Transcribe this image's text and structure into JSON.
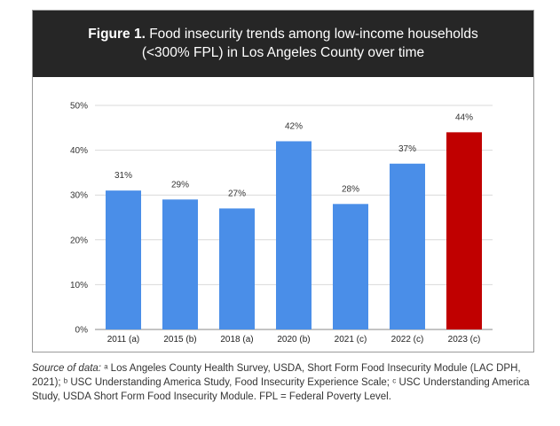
{
  "title": {
    "label": "Figure 1.",
    "line1": "Food insecurity trends among low-income households",
    "line2": "(<300% FPL) in Los Angeles County over time"
  },
  "source": {
    "label": "Source of data:",
    "text": " ᵃ Los Angeles County Health Survey, USDA, Short Form Food Insecurity Module (LAC DPH, 2021); ᵇ USC Understanding America Study, Food Insecurity Experience Scale; ᶜ USC Understanding America Study, USDA Short Form Food Insecurity Module. FPL = Federal Poverty Level."
  },
  "colors": {
    "bar": "#4a8ee8",
    "highlight": "#c00000",
    "grid": "#d9d9d9",
    "title_bg": "#262626"
  },
  "chart_data": {
    "type": "bar",
    "categories": [
      "2011 (a)",
      "2015 (b)",
      "2018 (a)",
      "2020 (b)",
      "2021 (c)",
      "2022 (c)",
      "2023 (c)"
    ],
    "values": [
      31,
      29,
      27,
      42,
      28,
      37,
      44
    ],
    "data_labels": [
      "31%",
      "29%",
      "27%",
      "42%",
      "28%",
      "37%",
      "44%"
    ],
    "highlight_index": 6,
    "ylim": [
      0,
      50
    ],
    "yticks": [
      0,
      10,
      20,
      30,
      40,
      50
    ],
    "ytick_labels": [
      "0%",
      "10%",
      "20%",
      "30%",
      "40%",
      "50%"
    ],
    "grid": true,
    "legend": "none"
  }
}
